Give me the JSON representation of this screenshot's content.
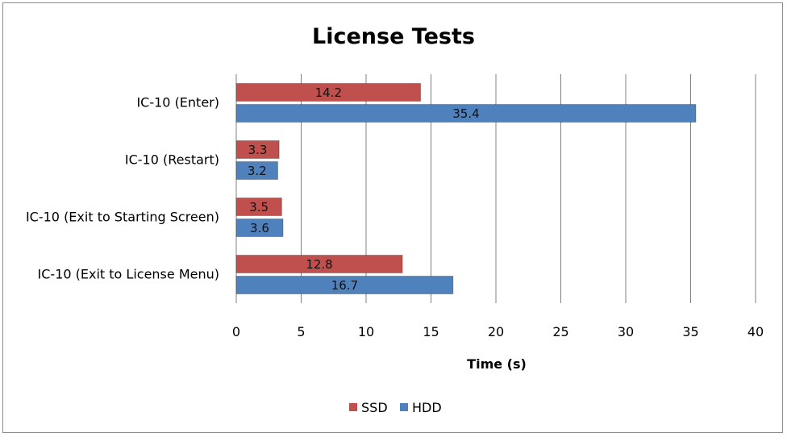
{
  "chart_data": {
    "type": "bar",
    "orientation": "horizontal",
    "title": "License Tests",
    "xlabel": "Time (s)",
    "ylabel": "",
    "categories": [
      "IC-10 (Enter)",
      "IC-10 (Restart)",
      "IC-10 (Exit to Starting Screen)",
      "IC-10 (Exit to License Menu)"
    ],
    "series": [
      {
        "name": "SSD",
        "values": [
          14.2,
          3.3,
          3.5,
          12.8
        ],
        "color": "#c0504d"
      },
      {
        "name": "HDD",
        "values": [
          35.4,
          3.2,
          3.6,
          16.7
        ],
        "color": "#4f81bd"
      }
    ],
    "xlim": [
      0,
      40
    ],
    "xticks": [
      0,
      5,
      10,
      15,
      20,
      25,
      30,
      35,
      40
    ],
    "grid": "vertical",
    "legend_position": "bottom"
  }
}
